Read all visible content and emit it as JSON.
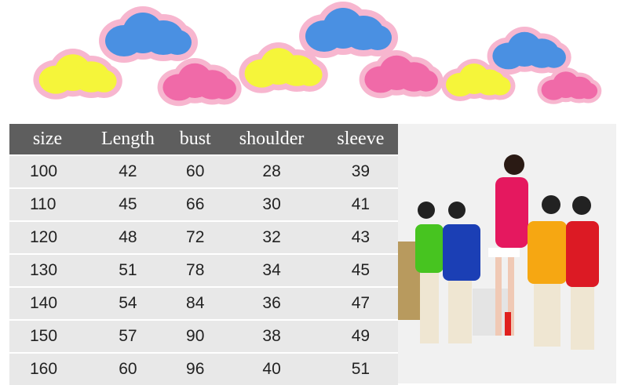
{
  "size_chart": {
    "headers": [
      "size",
      "Length",
      "bust",
      "shoulder",
      "sleeve"
    ],
    "rows": [
      [
        "100",
        "42",
        "60",
        "28",
        "39"
      ],
      [
        "110",
        "45",
        "66",
        "30",
        "41"
      ],
      [
        "120",
        "48",
        "72",
        "32",
        "43"
      ],
      [
        "130",
        "51",
        "78",
        "34",
        "45"
      ],
      [
        "140",
        "54",
        "84",
        "36",
        "47"
      ],
      [
        "150",
        "57",
        "90",
        "38",
        "49"
      ],
      [
        "160",
        "60",
        "96",
        "40",
        "51"
      ]
    ]
  },
  "colors": {
    "header_bg": "#5e5e5e",
    "row_bg": "#e8e8e8",
    "cloud_outline": "#f7b6cf",
    "cloud_blue": "#4a90e2",
    "cloud_yellow": "#f5f53a",
    "cloud_pink": "#f06aa8"
  }
}
